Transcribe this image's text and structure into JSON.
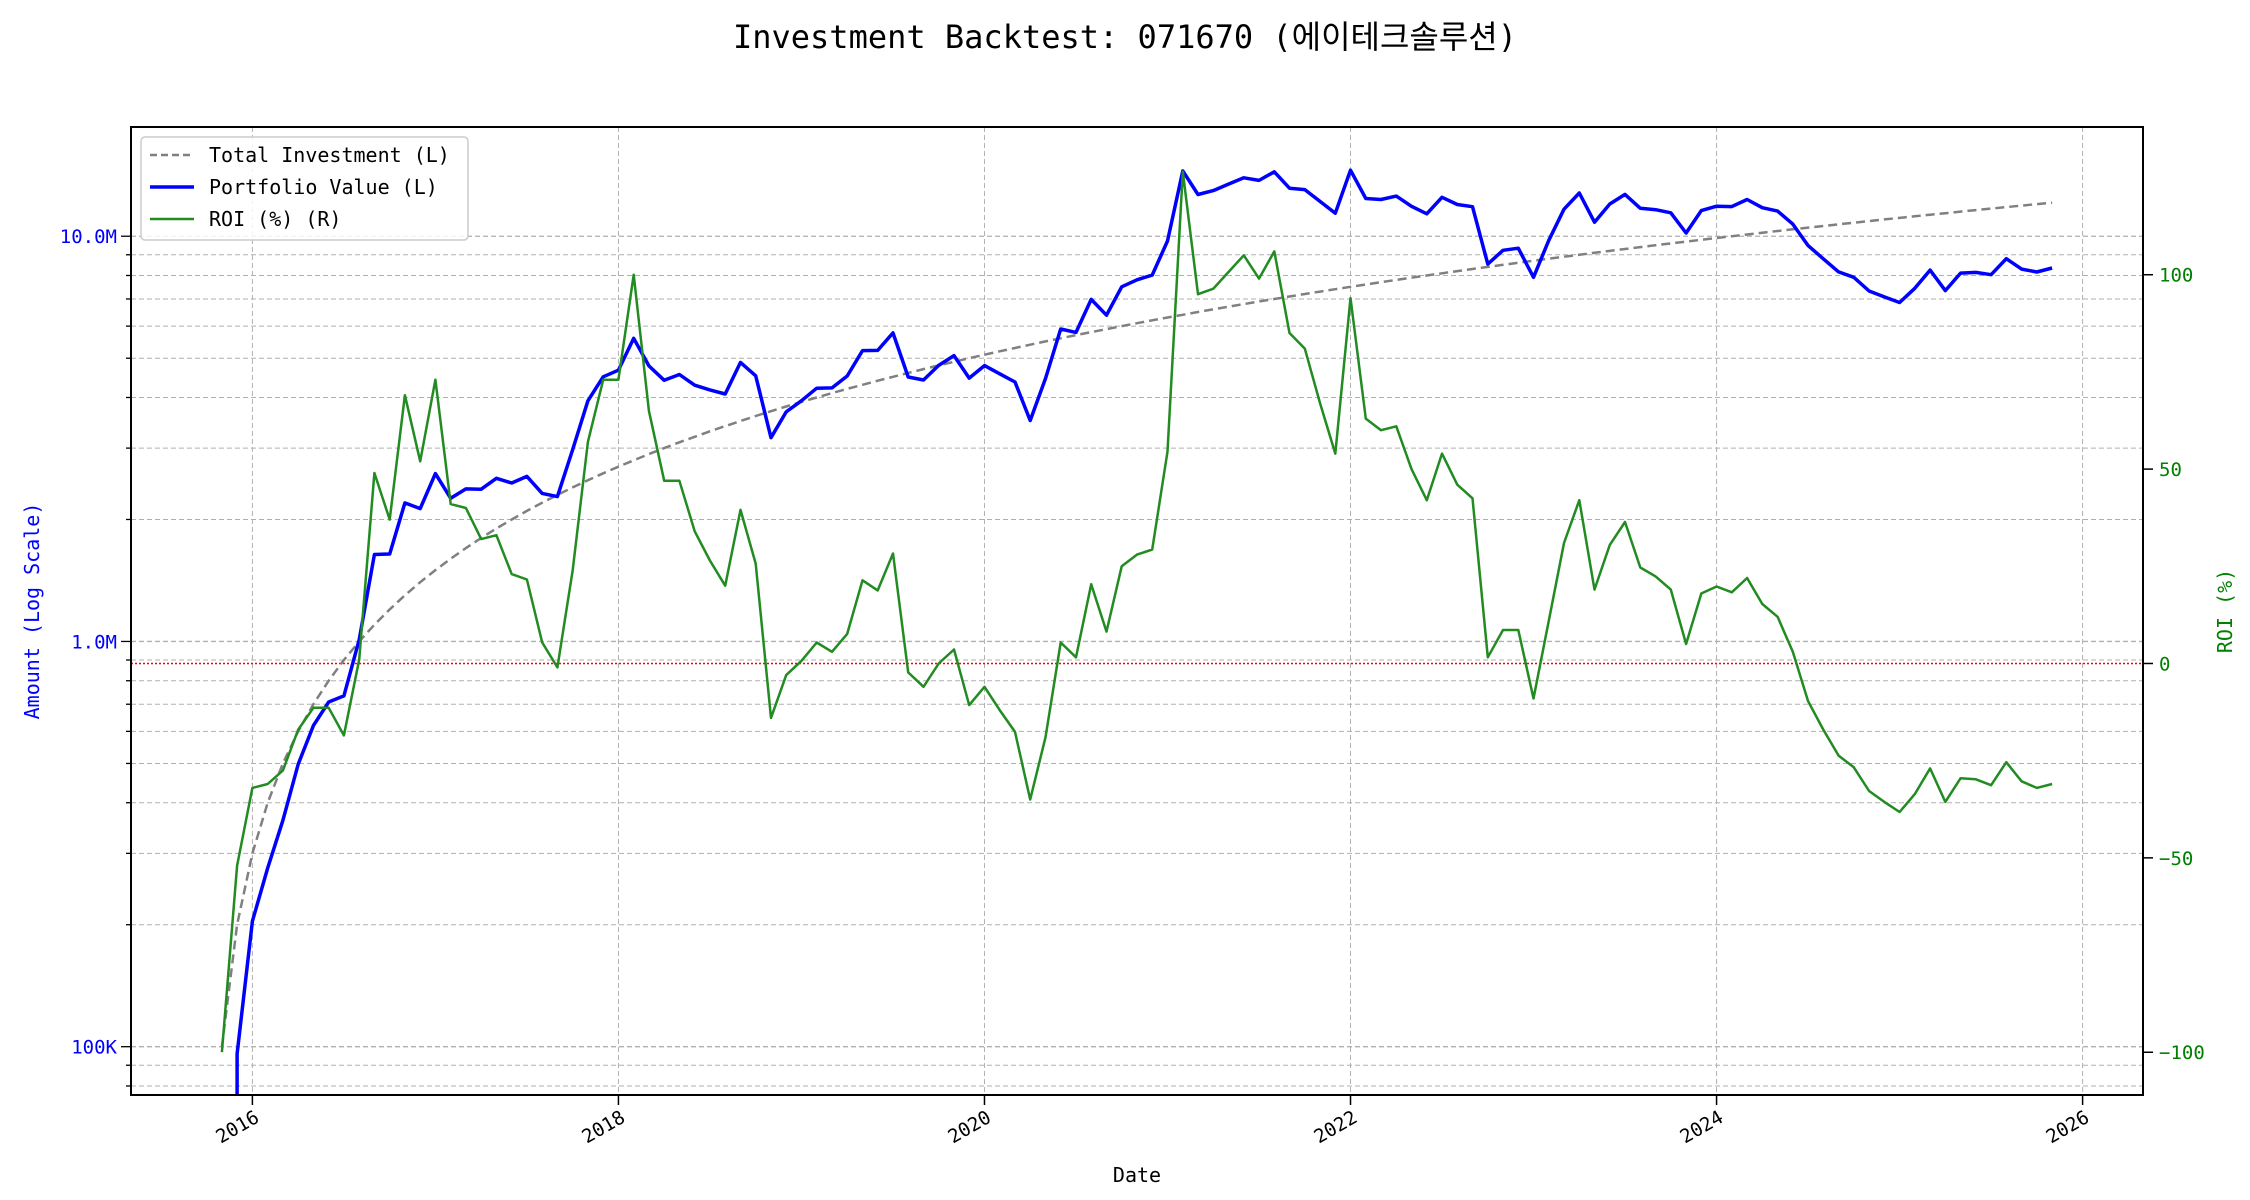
{
  "chart_data": {
    "type": "line",
    "title": "Investment Backtest: 071670 (에이테크솔루션)",
    "xlabel": "Date",
    "ylabel_left": "Amount (Log Scale)",
    "ylabel_right": "ROI (%)",
    "left_scale": "log",
    "ylim_left": [
      76000,
      18600000
    ],
    "ylim_right": [
      -111,
      138
    ],
    "xlim": [
      "2015-06",
      "2026-04"
    ],
    "x_ticks": [
      "2016",
      "2018",
      "2020",
      "2022",
      "2024",
      "2026"
    ],
    "left_ticks": [
      {
        "value": 100000,
        "label": "100K"
      },
      {
        "value": 1000000,
        "label": "1.0M"
      },
      {
        "value": 10000000,
        "label": "10.0M"
      }
    ],
    "right_ticks": [
      {
        "value": -100,
        "label": "−100"
      },
      {
        "value": -50,
        "label": "−50"
      },
      {
        "value": 0,
        "label": "0"
      },
      {
        "value": 50,
        "label": "50"
      },
      {
        "value": 100,
        "label": "100"
      }
    ],
    "grid": true,
    "legend_position": "top-left",
    "reference_line": {
      "axis": "right",
      "value": 0,
      "color": "#ff0000",
      "style": "dotted"
    },
    "colors": {
      "investment": "#808080",
      "portfolio": "#0000ff",
      "roi": "#228b22",
      "left_axis": "#0000ff",
      "right_axis": "#008000"
    },
    "x": [
      "2015-11",
      "2015-12",
      "2016-01",
      "2016-02",
      "2016-03",
      "2016-04",
      "2016-05",
      "2016-06",
      "2016-07",
      "2016-08",
      "2016-09",
      "2016-10",
      "2016-11",
      "2016-12",
      "2017-01",
      "2017-02",
      "2017-03",
      "2017-04",
      "2017-05",
      "2017-06",
      "2017-07",
      "2017-08",
      "2017-09",
      "2017-10",
      "2017-11",
      "2017-12",
      "2018-01",
      "2018-02",
      "2018-03",
      "2018-04",
      "2018-05",
      "2018-06",
      "2018-07",
      "2018-08",
      "2018-09",
      "2018-10",
      "2018-11",
      "2018-12",
      "2019-01",
      "2019-02",
      "2019-03",
      "2019-04",
      "2019-05",
      "2019-06",
      "2019-07",
      "2019-08",
      "2019-09",
      "2019-10",
      "2019-11",
      "2019-12",
      "2020-01",
      "2020-02",
      "2020-03",
      "2020-04",
      "2020-05",
      "2020-06",
      "2020-07",
      "2020-08",
      "2020-09",
      "2020-10",
      "2020-11",
      "2020-12",
      "2021-01",
      "2021-02",
      "2021-03",
      "2021-04",
      "2021-05",
      "2021-06",
      "2021-07",
      "2021-08",
      "2021-09",
      "2021-10",
      "2021-11",
      "2021-12",
      "2022-01",
      "2022-02",
      "2022-03",
      "2022-04",
      "2022-05",
      "2022-06",
      "2022-07",
      "2022-08",
      "2022-09",
      "2022-10",
      "2022-11",
      "2022-12",
      "2023-01",
      "2023-02",
      "2023-03",
      "2023-04",
      "2023-05",
      "2023-06",
      "2023-07",
      "2023-08",
      "2023-09",
      "2023-10",
      "2023-11",
      "2023-12",
      "2024-01",
      "2024-02",
      "2024-03",
      "2024-04",
      "2024-05",
      "2024-06",
      "2024-07",
      "2024-08",
      "2024-09",
      "2024-10",
      "2024-11",
      "2024-12",
      "2025-01",
      "2025-02",
      "2025-03",
      "2025-04",
      "2025-05",
      "2025-06",
      "2025-07",
      "2025-08",
      "2025-09",
      "2025-10",
      "2025-11"
    ],
    "series": [
      {
        "name": "Total Investment (L)",
        "axis": "left",
        "style": "dashed",
        "values": [
          100000,
          200000,
          300000,
          400000,
          500000,
          600000,
          700000,
          800000,
          900000,
          1000000,
          1100000,
          1200000,
          1300000,
          1400000,
          1500000,
          1600000,
          1700000,
          1800000,
          1900000,
          2000000,
          2100000,
          2200000,
          2300000,
          2400000,
          2500000,
          2600000,
          2700000,
          2800000,
          2900000,
          3000000,
          3100000,
          3200000,
          3300000,
          3400000,
          3500000,
          3600000,
          3700000,
          3800000,
          3900000,
          4000000,
          4100000,
          4200000,
          4300000,
          4400000,
          4500000,
          4600000,
          4700000,
          4800000,
          4900000,
          5000000,
          5100000,
          5200000,
          5300000,
          5400000,
          5500000,
          5600000,
          5700000,
          5800000,
          5900000,
          6000000,
          6100000,
          6200000,
          6300000,
          6400000,
          6500000,
          6600000,
          6700000,
          6800000,
          6900000,
          7000000,
          7100000,
          7200000,
          7300000,
          7400000,
          7500000,
          7600000,
          7700000,
          7800000,
          7900000,
          8000000,
          8100000,
          8200000,
          8300000,
          8400000,
          8500000,
          8600000,
          8700000,
          8800000,
          8900000,
          9000000,
          9100000,
          9200000,
          9300000,
          9400000,
          9500000,
          9600000,
          9700000,
          9800000,
          9900000,
          10000000,
          10100000,
          10200000,
          10300000,
          10400000,
          10500000,
          10600000,
          10700000,
          10800000,
          10900000,
          11000000,
          11100000,
          11200000,
          11300000,
          11400000,
          11500000,
          11600000,
          11700000,
          11800000,
          11900000,
          12000000,
          12100000
        ]
      },
      {
        "name": "Portfolio Value (L)",
        "axis": "left",
        "style": "solid",
        "values": [
          0,
          96000,
          204000,
          276000,
          362000,
          498000,
          620000,
          709000,
          734000,
          1010000,
          1639000,
          1644000,
          2197000,
          2128000,
          2595000,
          2256000,
          2380000,
          2376000,
          2527000,
          2460000,
          2554000,
          2319000,
          2277000,
          2976000,
          3925000,
          4498000,
          4671000,
          5600000,
          4785000,
          4410000,
          4557000,
          4288000,
          4175000,
          4080000,
          4883000,
          4525000,
          3182000,
          3686000,
          3927000,
          4216000,
          4223000,
          4519000,
          5220000,
          5227000,
          5774000,
          4494000,
          4418000,
          4800000,
          5076000,
          4465000,
          4794000,
          4576000,
          4367000,
          3510000,
          4455000,
          5902000,
          5791000,
          6983000,
          6384000,
          7500000,
          7808000,
          8017000,
          9734000,
          14496000,
          12675000,
          12962000,
          13447000,
          13940000,
          13731000,
          14420000,
          13135000,
          13032000,
          12191000,
          11396000,
          14550000,
          12388000,
          12320000,
          12558000,
          11850000,
          11360000,
          12474000,
          11972000,
          11828000,
          8534000,
          9231000,
          9340000,
          7917000,
          9768000,
          11659000,
          12780000,
          10829000,
          12006000,
          12685000,
          11722000,
          11628000,
          11424000,
          10185000,
          11564000,
          11860000,
          11830000,
          12322000,
          11761000,
          11536000,
          10712000,
          9482000,
          8798000,
          8164000,
          7916000,
          7325000,
          7084000,
          6860000,
          7437000,
          8249000,
          7342000,
          8108000,
          8143000,
          8038000,
          8803000,
          8294000,
          8160000,
          8349000
        ]
      },
      {
        "name": "ROI (%) (R)",
        "axis": "right",
        "style": "solid",
        "values": [
          -100,
          -52,
          -32,
          -31,
          -27.5,
          -17,
          -11.4,
          -11.4,
          -18.5,
          1,
          49,
          37,
          69,
          52,
          73,
          41,
          40,
          32,
          33,
          23,
          21.6,
          5.4,
          -1,
          24,
          57,
          73,
          73,
          100,
          65,
          47,
          47,
          34,
          26.5,
          20,
          39.5,
          25.7,
          -14,
          -3,
          0.7,
          5.4,
          3,
          7.6,
          21.4,
          18.8,
          28.3,
          -2.3,
          -6,
          0,
          3.6,
          -10.7,
          -6,
          -12,
          -17.6,
          -35,
          -19,
          5.4,
          1.6,
          20.4,
          8.2,
          25,
          28,
          29.3,
          54.5,
          126.5,
          95,
          96.4,
          100.7,
          105,
          99,
          106,
          85,
          81,
          67,
          54,
          94,
          63,
          60,
          61,
          50,
          42,
          54,
          46,
          42.5,
          1.6,
          8.6,
          8.6,
          -9,
          11,
          31,
          42,
          19,
          30.5,
          36.4,
          24.7,
          22.4,
          19,
          5,
          18,
          19.8,
          18.3,
          22,
          15.3,
          12,
          3,
          -9.7,
          -17,
          -23.7,
          -26.7,
          -32.8,
          -35.6,
          -38.2,
          -33.6,
          -27,
          -35.6,
          -29.5,
          -29.8,
          -31.3,
          -25.4,
          -30.3,
          -32,
          -31
        ]
      }
    ]
  }
}
